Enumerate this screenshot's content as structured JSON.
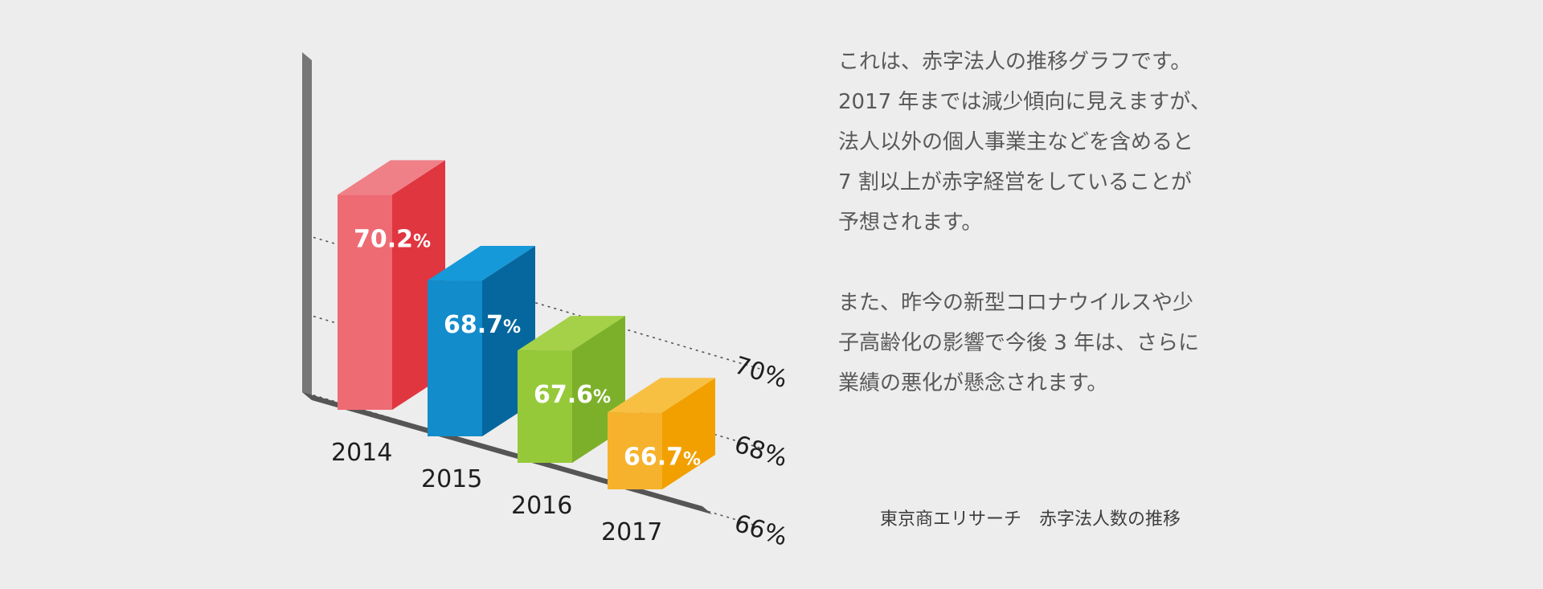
{
  "description": {
    "paragraph1": [
      "これは、赤字法人の推移グラフです。",
      "2017 年までは減少傾向に見えますが、",
      "法人以外の個人事業主などを含めると",
      "7 割以上が赤字経営をしていることが",
      "予想されます。"
    ],
    "paragraph2": [
      "また、昨今の新型コロナウイルスや少",
      "子高齢化の影響で今後 3 年は、さらに",
      "業績の悪化が懸念されます。"
    ]
  },
  "source": "東京商エリサーチ　赤字法人数の推移",
  "chart_data": {
    "type": "bar",
    "categories": [
      "2014",
      "2015",
      "2016",
      "2017"
    ],
    "values": [
      70.2,
      68.7,
      67.6,
      66.7
    ],
    "value_labels": [
      "70.2%",
      "68.7%",
      "67.6%",
      "66.7%"
    ],
    "gridlines": [
      {
        "value": 70,
        "label": "70%"
      },
      {
        "value": 68,
        "label": "68%"
      },
      {
        "value": 66,
        "label": "66%"
      }
    ],
    "ylim": [
      64.75,
      71.7
    ],
    "colors": {
      "bars": [
        {
          "front": "#ee6b73",
          "side": "#e0363f",
          "top": "#f08088"
        },
        {
          "front": "#128cca",
          "side": "#05679e",
          "top": "#1699d8"
        },
        {
          "front": "#95c93a",
          "side": "#7cb02a",
          "top": "#a5d148"
        },
        {
          "front": "#f6b22d",
          "side": "#f2a000",
          "top": "#f8c043"
        }
      ],
      "axis": "#777777",
      "floor": "#555555",
      "grid": "#555555",
      "value_label": "#ffffff",
      "category_label": "#1e1e1e"
    }
  }
}
